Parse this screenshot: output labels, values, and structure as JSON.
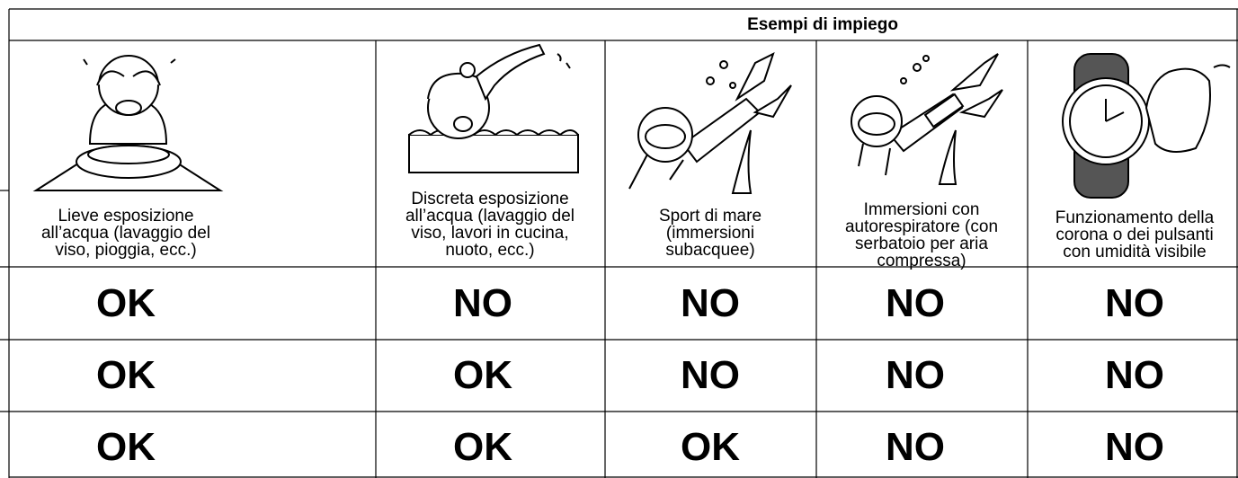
{
  "header": {
    "title": "Esempi di impiego"
  },
  "columns": [
    {
      "caption": [
        "Lieve esposizione",
        "all’acqua (lavaggio del",
        "viso, pioggia, ecc.)"
      ]
    },
    {
      "caption": [
        "Discreta esposizione",
        "all’acqua (lavaggio del",
        "viso, lavori in cucina,",
        "nuoto, ecc.)"
      ]
    },
    {
      "caption": [
        "Sport di mare",
        "(immersioni",
        "subacquee)"
      ]
    },
    {
      "caption": [
        "Immersioni con",
        "autorespiratore (con",
        "serbatoio per aria",
        "compressa)"
      ]
    },
    {
      "caption": [
        "Funzionamento della",
        "corona o dei pulsanti",
        "con umidità visibile"
      ]
    }
  ],
  "table": {
    "rows": [
      [
        "OK",
        "NO",
        "NO",
        "NO",
        "NO"
      ],
      [
        "OK",
        "OK",
        "NO",
        "NO",
        "NO"
      ],
      [
        "OK",
        "OK",
        "OK",
        "NO",
        "NO"
      ]
    ]
  }
}
